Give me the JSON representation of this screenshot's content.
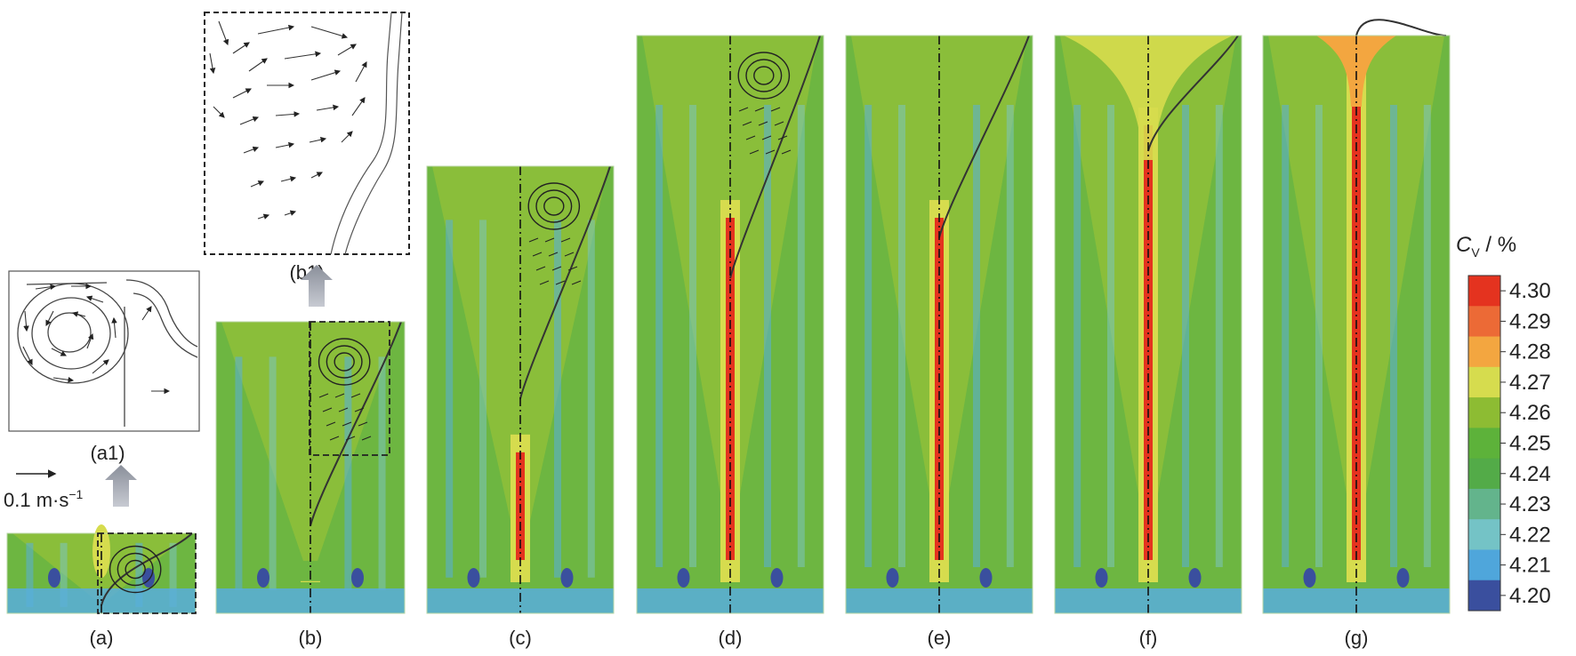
{
  "panels": [
    {
      "id": "a",
      "label": "(a)"
    },
    {
      "id": "b",
      "label": "(b)"
    },
    {
      "id": "c",
      "label": "(c)"
    },
    {
      "id": "d",
      "label": "(d)"
    },
    {
      "id": "e",
      "label": "(e)"
    },
    {
      "id": "f",
      "label": "(f)"
    },
    {
      "id": "g",
      "label": "(g)"
    }
  ],
  "insets": [
    {
      "id": "a1",
      "label": "(a1)"
    },
    {
      "id": "b1",
      "label": "(b1)"
    }
  ],
  "velocity_scale": {
    "text": "0.1 m·s",
    "superscript": "−1"
  },
  "colorbar": {
    "title_main": "C",
    "title_sub": "V",
    "title_rest": " / %",
    "ticks": [
      "4.30",
      "4.29",
      "4.28",
      "4.27",
      "4.26",
      "4.25",
      "4.24",
      "4.23",
      "4.22",
      "4.21",
      "4.20"
    ],
    "colors": [
      "#e4331f",
      "#ec6a36",
      "#f3a640",
      "#d6dc4e",
      "#8dbc33",
      "#5db23a",
      "#53ab48",
      "#63b48c",
      "#74c3c6",
      "#4fa6db",
      "#3a4f9e"
    ]
  },
  "palette": {
    "field_green": "#6db641",
    "light_green": "#8fc03a",
    "yellow": "#d6dc4e",
    "orange": "#f3a640",
    "red": "#e4331f",
    "blue": "#58aedd",
    "dark_blue": "#3a4f9e",
    "teal": "#7cc4c0"
  }
}
